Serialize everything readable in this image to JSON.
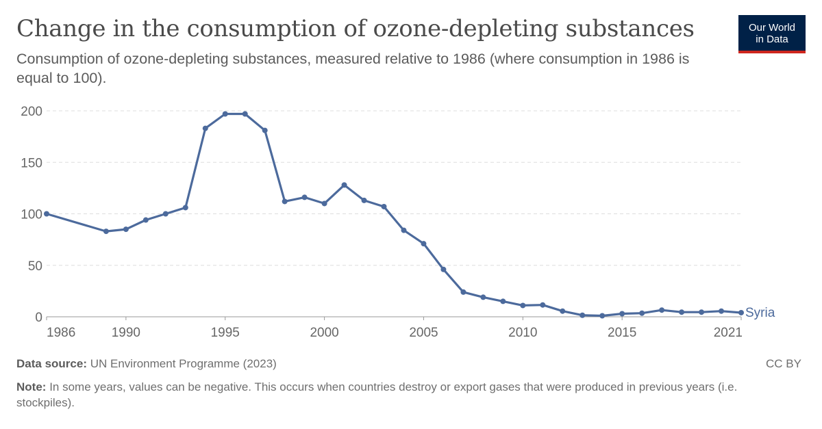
{
  "header": {
    "title": "Change in the consumption of ozone-depleting substances",
    "subtitle": "Consumption of ozone-depleting substances, measured relative to 1986 (where consumption in 1986 is equal to 100)."
  },
  "logo": {
    "line1": "Our World",
    "line2": "in Data"
  },
  "footer": {
    "source_label": "Data source:",
    "source_text": "UN Environment Programme (2023)",
    "license": "CC BY",
    "note_label": "Note:",
    "note_text": "In some years, values can be negative. This occurs when countries destroy or export gases that were produced in previous years (i.e. stockpiles)."
  },
  "colors": {
    "series": "#4c6a9c",
    "grid": "#dddddd",
    "axis": "#999999",
    "logo_bg": "#002147",
    "logo_accent": "#ce261e"
  },
  "chart_data": {
    "type": "line",
    "title": "Change in the consumption of ozone-depleting substances",
    "xlabel": "",
    "ylabel": "",
    "xlim": [
      1986,
      2021
    ],
    "ylim": [
      0,
      200
    ],
    "y_ticks": [
      0,
      50,
      100,
      150,
      200
    ],
    "x_ticks": [
      1986,
      1990,
      1995,
      2000,
      2005,
      2010,
      2015,
      2021
    ],
    "grid": "horizontal dashed",
    "legend": "inline label at line end",
    "series": [
      {
        "name": "Syria",
        "x": [
          1986,
          1989,
          1990,
          1991,
          1992,
          1993,
          1994,
          1995,
          1996,
          1997,
          1998,
          1999,
          2000,
          2001,
          2002,
          2003,
          2004,
          2005,
          2006,
          2007,
          2008,
          2009,
          2010,
          2011,
          2012,
          2013,
          2014,
          2015,
          2016,
          2017,
          2018,
          2019,
          2020,
          2021
        ],
        "values": [
          100,
          83,
          85,
          94,
          100,
          106,
          183,
          197,
          197,
          181,
          112,
          116,
          110,
          128,
          113,
          107,
          84,
          71,
          46,
          24,
          19,
          15,
          11,
          11.5,
          5.5,
          1.5,
          1,
          3,
          3.5,
          6.5,
          4.5,
          4.5,
          5.5,
          4
        ]
      }
    ]
  }
}
